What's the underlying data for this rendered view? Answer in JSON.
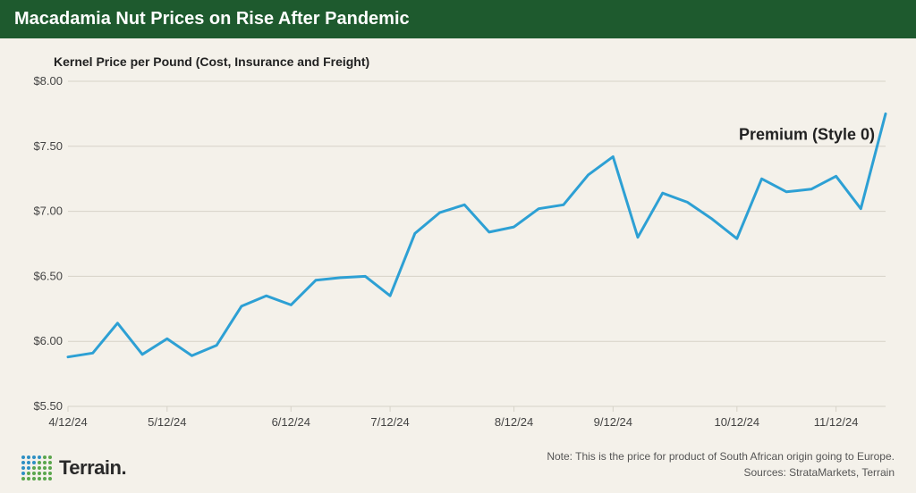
{
  "title": "Macadamia Nut Prices on Rise After Pandemic",
  "subtitle": "Kernel Price per Pound (Cost, Insurance and Freight)",
  "footer": {
    "note": "Note: This is the price for product of South African origin going to Europe.",
    "sources": "Sources: StrataMarkets, Terrain"
  },
  "logo": {
    "text": "Terrain."
  },
  "colors": {
    "title_bar": "#1e5a2e",
    "background": "#f4f1ea",
    "line": "#2da0d4",
    "gridline": "#d6d2c8",
    "axis_text": "#444444",
    "subtitle": "#222222",
    "footer_text": "#555555",
    "logo_green": "#5aa64d",
    "logo_blue": "#2d8fc4"
  },
  "chart": {
    "type": "line",
    "series_label": "Premium (Style 0)",
    "ylim": [
      5.5,
      8.0
    ],
    "ytick_step": 0.5,
    "ytick_labels": [
      "$5.50",
      "$6.00",
      "$6.50",
      "$7.00",
      "$7.50",
      "$8.00"
    ],
    "xtick_labels": [
      "4/12/24",
      "5/12/24",
      "6/12/24",
      "7/12/24",
      "8/12/24",
      "9/12/24",
      "10/12/24",
      "11/12/24"
    ],
    "xtick_positions": [
      0,
      4,
      9,
      13,
      18,
      22,
      27,
      31
    ],
    "line_width": 3,
    "label_fontsize": 18,
    "axis_fontsize": 13,
    "values": [
      5.88,
      5.91,
      6.14,
      5.9,
      6.02,
      5.89,
      5.97,
      6.27,
      6.35,
      6.28,
      6.47,
      6.49,
      6.5,
      6.35,
      6.83,
      6.99,
      7.05,
      6.84,
      6.88,
      7.02,
      7.05,
      7.28,
      7.42,
      6.8,
      7.14,
      7.07,
      6.94,
      6.79,
      7.25,
      7.15,
      7.17,
      7.27,
      7.02,
      7.75
    ]
  },
  "logo_pattern": [
    [
      2,
      2,
      2,
      2,
      1,
      1
    ],
    [
      2,
      2,
      2,
      1,
      1,
      1
    ],
    [
      2,
      2,
      1,
      1,
      1,
      1
    ],
    [
      2,
      1,
      1,
      1,
      1,
      1
    ],
    [
      1,
      1,
      1,
      1,
      1,
      1
    ]
  ]
}
